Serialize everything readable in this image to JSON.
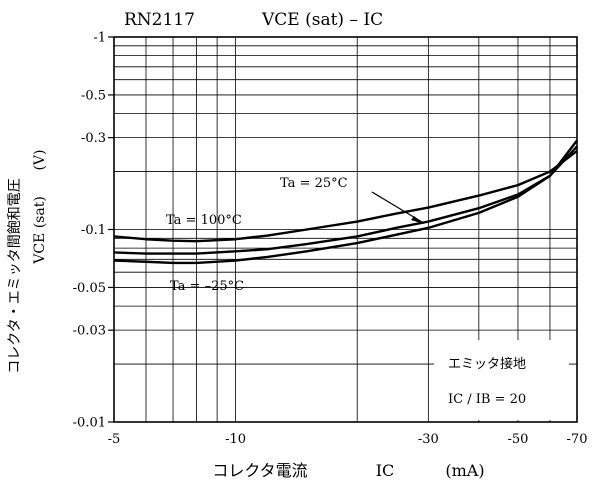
{
  "chart_data": {
    "type": "line",
    "title": {
      "part_number": "RN2117",
      "formula": "VCE (sat) – IC"
    },
    "ylabel": {
      "jp": "コレクタ・エミッタ間飽和電圧",
      "sym": "VCE (sat)",
      "unit": "(V)"
    },
    "xlabel": {
      "jp": "コレクタ電流",
      "sym": "IC",
      "unit": "(mA)"
    },
    "x_scale": "log",
    "y_scale": "log",
    "xlim": [
      -5,
      -70
    ],
    "ylim": [
      -0.01,
      -1
    ],
    "x_ticks": [
      {
        "value": -5,
        "label": "-5"
      },
      {
        "value": -10,
        "label": "-10"
      },
      {
        "value": -30,
        "label": "-30"
      },
      {
        "value": -50,
        "label": "-50"
      },
      {
        "value": -70,
        "label": "-70"
      }
    ],
    "y_ticks": [
      {
        "value": -1,
        "label": "-1"
      },
      {
        "value": -0.5,
        "label": "-0.5"
      },
      {
        "value": -0.3,
        "label": "-0.3"
      },
      {
        "value": -0.1,
        "label": "-0.1"
      },
      {
        "value": -0.05,
        "label": "-0.05"
      },
      {
        "value": -0.03,
        "label": "-0.03"
      },
      {
        "value": -0.01,
        "label": "-0.01"
      }
    ],
    "grid": true,
    "series": [
      {
        "name": "Ta = 100°C",
        "x": [
          -5,
          -6,
          -7,
          -8,
          -10,
          -12,
          -15,
          -20,
          -25,
          -30,
          -40,
          -50,
          -60,
          -70
        ],
        "y": [
          -0.092,
          -0.089,
          -0.0875,
          -0.087,
          -0.089,
          -0.093,
          -0.1,
          -0.11,
          -0.121,
          -0.13,
          -0.15,
          -0.17,
          -0.2,
          -0.256
        ]
      },
      {
        "name": "Ta = 25°C",
        "x": [
          -5,
          -6,
          -7,
          -8,
          -10,
          -12,
          -15,
          -20,
          -25,
          -30,
          -40,
          -50,
          -60,
          -70
        ],
        "y": [
          -0.076,
          -0.075,
          -0.075,
          -0.075,
          -0.077,
          -0.079,
          -0.084,
          -0.092,
          -0.102,
          -0.11,
          -0.129,
          -0.152,
          -0.19,
          -0.27
        ]
      },
      {
        "name": "Ta = –25°C",
        "x": [
          -5,
          -6,
          -7,
          -8,
          -10,
          -12,
          -15,
          -20,
          -25,
          -30,
          -40,
          -50,
          -60,
          -70
        ],
        "y": [
          -0.069,
          -0.068,
          -0.067,
          -0.067,
          -0.069,
          -0.072,
          -0.077,
          -0.085,
          -0.094,
          -0.102,
          -0.122,
          -0.148,
          -0.19,
          -0.29
        ]
      }
    ],
    "annotations": {
      "label_100": "Ta = 100°C",
      "label_25": "Ta = 25°C",
      "label_m25": "Ta = –25°C",
      "ground": "エミッタ接地",
      "ratio": "IC / IB = 20"
    }
  }
}
